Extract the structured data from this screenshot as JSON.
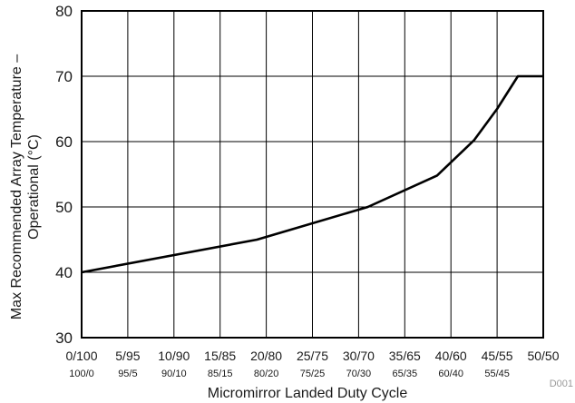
{
  "chart_data": {
    "type": "line",
    "title": "",
    "xlabel": "Micromirror Landed Duty Cycle",
    "ylabel_lines": [
      "Max Recommended Array Temperature –",
      "Operational (°C)"
    ],
    "categories": [
      "0/100",
      "5/95",
      "10/90",
      "15/85",
      "20/80",
      "25/75",
      "30/70",
      "35/65",
      "40/60",
      "45/55",
      "50/50"
    ],
    "categories_secondary": [
      "100/0",
      "95/5",
      "90/10",
      "85/15",
      "80/20",
      "75/25",
      "70/30",
      "65/35",
      "60/40",
      "55/45",
      ""
    ],
    "x_index_range": [
      0,
      10
    ],
    "ylim": [
      30,
      80
    ],
    "yticks": [
      "30",
      "40",
      "50",
      "60",
      "70",
      "80"
    ],
    "grid": true,
    "series": [
      {
        "points": [
          [
            0,
            40
          ],
          [
            3.8,
            45
          ],
          [
            6.2,
            50
          ],
          [
            7.7,
            54.8
          ],
          [
            8.5,
            60.2
          ],
          [
            9.0,
            65
          ],
          [
            9.45,
            70
          ],
          [
            10,
            70
          ]
        ]
      }
    ],
    "watermark": "D001"
  }
}
